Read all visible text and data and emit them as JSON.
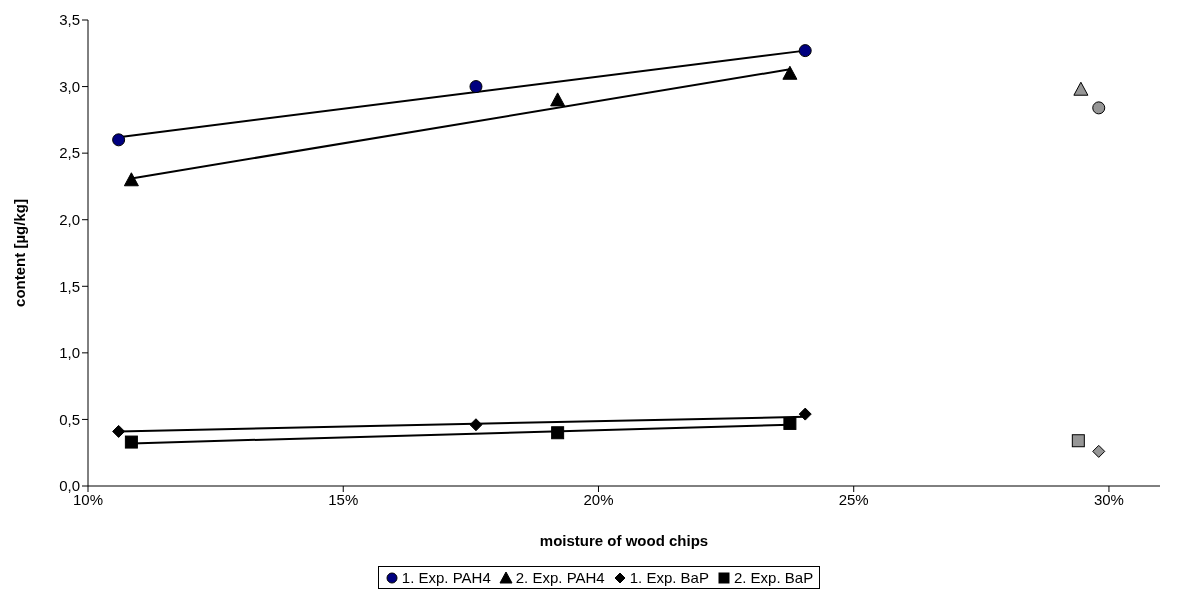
{
  "chart_data": {
    "type": "scatter",
    "xlabel": "moisture of wood chips",
    "ylabel": "content [µg/kg]",
    "xlim": [
      10,
      31
    ],
    "xticks": [
      {
        "value": 10,
        "label": "10%"
      },
      {
        "value": 15,
        "label": "15%"
      },
      {
        "value": 20,
        "label": "20%"
      },
      {
        "value": 25,
        "label": "25%"
      },
      {
        "value": 30,
        "label": "30%"
      }
    ],
    "ylim": [
      0,
      3.5
    ],
    "yticks": [
      {
        "value": 0,
        "label": "0,0"
      },
      {
        "value": 0.5,
        "label": "0,5"
      },
      {
        "value": 1,
        "label": "1,0"
      },
      {
        "value": 1.5,
        "label": "1,5"
      },
      {
        "value": 2,
        "label": "2,0"
      },
      {
        "value": 2.5,
        "label": "2,5"
      },
      {
        "value": 3,
        "label": "3,0"
      },
      {
        "value": 3.5,
        "label": "3,5"
      }
    ],
    "grid": false,
    "legend": "bottom",
    "series": [
      {
        "name": "1. Exp. PAH4",
        "color": "#000080",
        "marker": "circle",
        "x": [
          10.6,
          17.6,
          24.05
        ],
        "values": [
          2.6,
          3.0,
          3.27
        ]
      },
      {
        "name": "2. Exp. PAH4",
        "color": "#000000",
        "marker": "triangle",
        "x": [
          10.85,
          19.2,
          23.75
        ],
        "values": [
          2.3,
          2.9,
          3.1
        ]
      },
      {
        "name": "1. Exp. BaP",
        "color": "#000000",
        "marker": "diamond",
        "x": [
          10.6,
          17.6,
          24.05
        ],
        "values": [
          0.41,
          0.46,
          0.54
        ]
      },
      {
        "name": "2. Exp. BaP",
        "color": "#000000",
        "marker": "square",
        "x": [
          10.85,
          19.2,
          23.75
        ],
        "values": [
          0.33,
          0.4,
          0.47
        ]
      },
      {
        "color": "#969696",
        "marker": "circle",
        "x": [
          29.8
        ],
        "values": [
          2.84
        ]
      },
      {
        "color": "#969696",
        "marker": "triangle",
        "x": [
          29.45
        ],
        "values": [
          2.98
        ]
      },
      {
        "color": "#969696",
        "marker": "diamond",
        "x": [
          29.8
        ],
        "values": [
          0.26
        ]
      },
      {
        "color": "#969696",
        "marker": "square",
        "x": [
          29.4
        ],
        "values": [
          0.34
        ]
      },
      {
        "type": "line",
        "color": "#000000",
        "marker": "none",
        "x": [
          10.6,
          24.05
        ],
        "values": [
          2.62,
          3.27
        ]
      },
      {
        "type": "line",
        "color": "#000000",
        "marker": "none",
        "x": [
          10.85,
          23.75
        ],
        "values": [
          2.31,
          3.13
        ]
      },
      {
        "type": "line",
        "color": "#000000",
        "marker": "none",
        "x": [
          10.6,
          24.05
        ],
        "values": [
          0.41,
          0.52
        ]
      },
      {
        "type": "line",
        "color": "#000000",
        "marker": "none",
        "x": [
          10.85,
          23.75
        ],
        "values": [
          0.32,
          0.46
        ]
      }
    ]
  }
}
